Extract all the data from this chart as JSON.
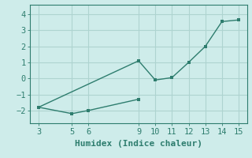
{
  "xlabel": "Humidex (Indice chaleur)",
  "background_color": "#ceecea",
  "line_color": "#2e7d6e",
  "grid_color": "#aed4d0",
  "line1_x": [
    3,
    5,
    6,
    9
  ],
  "line1_y": [
    -1.8,
    -2.2,
    -2.0,
    -1.3
  ],
  "line2_x": [
    3,
    9,
    10,
    11,
    12,
    13,
    14,
    15
  ],
  "line2_y": [
    -1.8,
    1.1,
    -0.1,
    0.05,
    1.0,
    2.0,
    3.55,
    3.65
  ],
  "xlim": [
    2.5,
    15.5
  ],
  "ylim": [
    -2.8,
    4.6
  ],
  "xticks": [
    3,
    5,
    6,
    9,
    10,
    11,
    12,
    13,
    14,
    15
  ],
  "yticks": [
    -2,
    -1,
    0,
    1,
    2,
    3,
    4
  ],
  "fontsize": 7.5,
  "xlabel_fontsize": 8.0
}
